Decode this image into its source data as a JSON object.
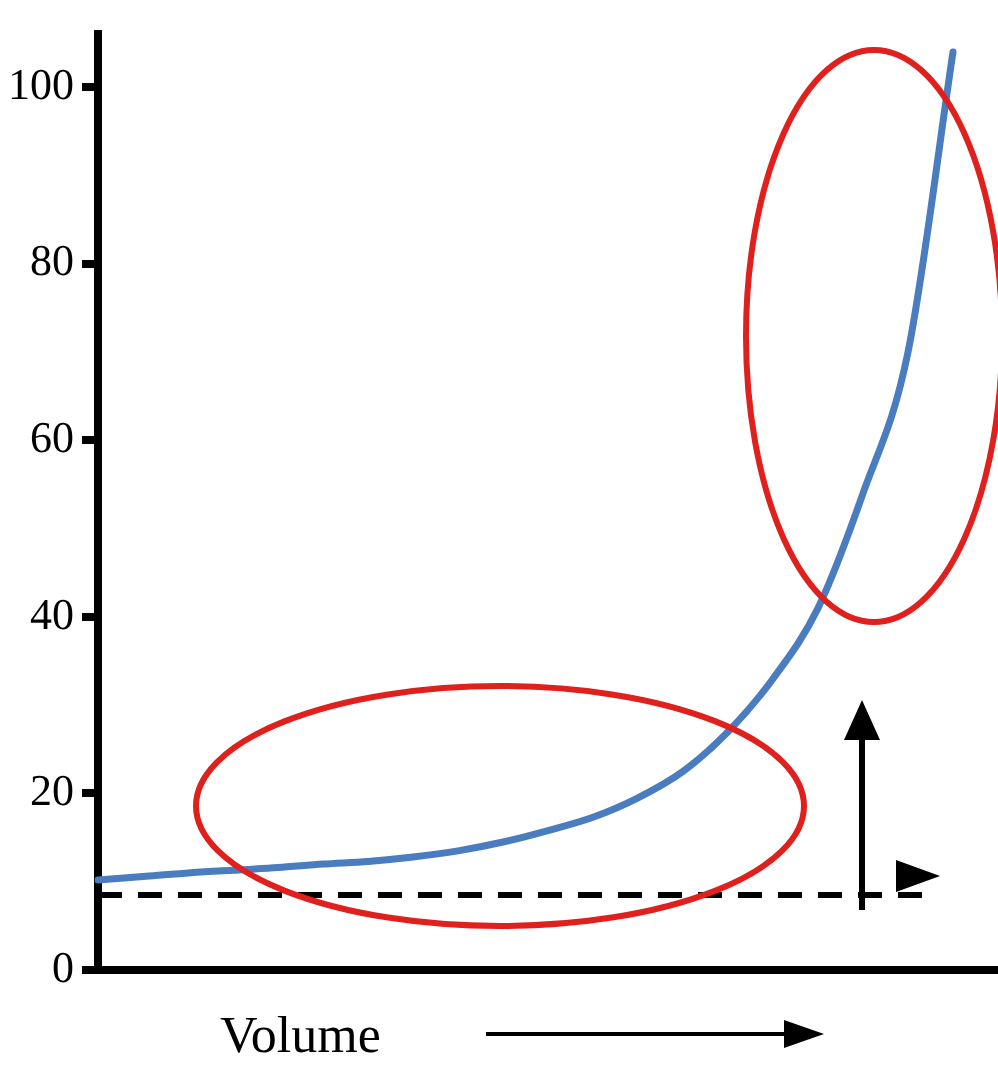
{
  "chart_data": {
    "type": "line",
    "xlabel": "Volume",
    "categories": [
      null,
      null,
      null,
      null,
      null,
      null,
      null,
      null,
      null,
      null,
      null,
      null,
      null,
      null,
      null,
      null,
      null,
      null,
      null,
      null,
      null
    ],
    "series": [
      {
        "color": "#4a7cc0",
        "values": [
          10.2,
          10.6,
          11,
          11.3,
          11.6,
          12,
          12.3,
          12.8,
          13.5,
          14.5,
          15.8,
          17.3,
          19.5,
          22.5,
          27,
          33,
          41,
          54,
          70,
          104,
          null
        ]
      }
    ],
    "ylim": [
      0,
      106
    ],
    "yticks": [
      0,
      20,
      40,
      60,
      80,
      100
    ],
    "grid": false,
    "tick_labels": "y",
    "marker": "none",
    "line_style": "solid",
    "ref_lines": [
      {
        "axis": "y",
        "value": 8.5,
        "color": "#000000",
        "line_style": "dashed"
      }
    ]
  }
}
